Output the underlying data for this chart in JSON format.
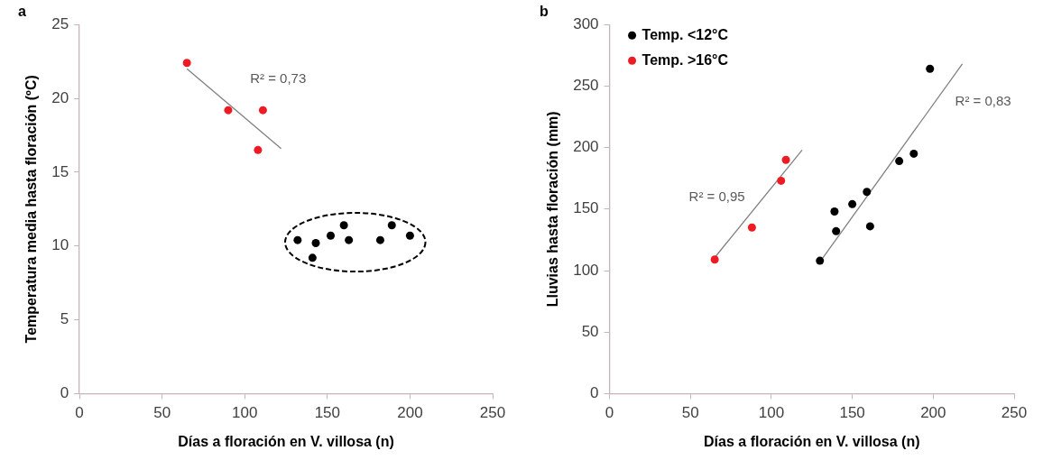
{
  "chart_data": [
    {
      "type": "scatter",
      "title": "a",
      "xlabel": "Días a floración en V. villosa (n)",
      "ylabel": "Temperatura media hasta floración (ºC)",
      "xlim": [
        0,
        250
      ],
      "xticks": [
        0,
        50,
        100,
        150,
        200,
        250
      ],
      "ylim": [
        0,
        25
      ],
      "yticks": [
        0,
        5,
        10,
        15,
        20,
        25
      ],
      "grid": false,
      "legend": false,
      "marker": "circle",
      "series": [
        {
          "color": "#ed1c24",
          "x": [
            65,
            90,
            111,
            108
          ],
          "values": [
            22.4,
            19.2,
            19.2,
            16.5
          ]
        },
        {
          "color": "#000000",
          "x": [
            132,
            143,
            141,
            152,
            160,
            163,
            182,
            189,
            200
          ],
          "values": [
            10.4,
            10.2,
            9.2,
            10.7,
            11.4,
            10.4,
            10.4,
            11.4,
            10.7
          ]
        },
        {
          "type": "line",
          "color": "#808080",
          "marker": "none",
          "x": [
            65,
            122
          ],
          "values": [
            22.0,
            16.6
          ]
        }
      ],
      "annotations": [
        "R² = 0,73"
      ]
    },
    {
      "type": "scatter",
      "title": "b",
      "xlabel": "Días a floración en V. villosa (n)",
      "ylabel": "Lluvias hasta floración (mm)",
      "xlim": [
        0,
        250
      ],
      "xticks": [
        0,
        50,
        100,
        150,
        200,
        250
      ],
      "ylim": [
        0,
        300
      ],
      "yticks": [
        0,
        50,
        100,
        150,
        200,
        250,
        300
      ],
      "grid": false,
      "legend": "top left",
      "marker": "circle",
      "series": [
        {
          "name": "Temp. <12°C",
          "color": "#000000",
          "x": [
            130,
            139,
            140,
            150,
            159,
            161,
            179,
            188,
            198
          ],
          "values": [
            108,
            148,
            132,
            154,
            164,
            136,
            189,
            195,
            264
          ]
        },
        {
          "name": "Temp. >16°C",
          "color": "#ed1c24",
          "x": [
            65,
            88,
            106,
            109
          ],
          "values": [
            109,
            135,
            173,
            190
          ]
        },
        {
          "type": "line",
          "color": "#808080",
          "marker": "none",
          "x": [
            64,
            119
          ],
          "values": [
            109,
            198
          ]
        },
        {
          "type": "line",
          "color": "#808080",
          "marker": "none",
          "x": [
            130,
            218
          ],
          "values": [
            107,
            268
          ]
        }
      ],
      "annotations": [
        "R² = 0,95",
        "R² = 0,83"
      ]
    }
  ]
}
